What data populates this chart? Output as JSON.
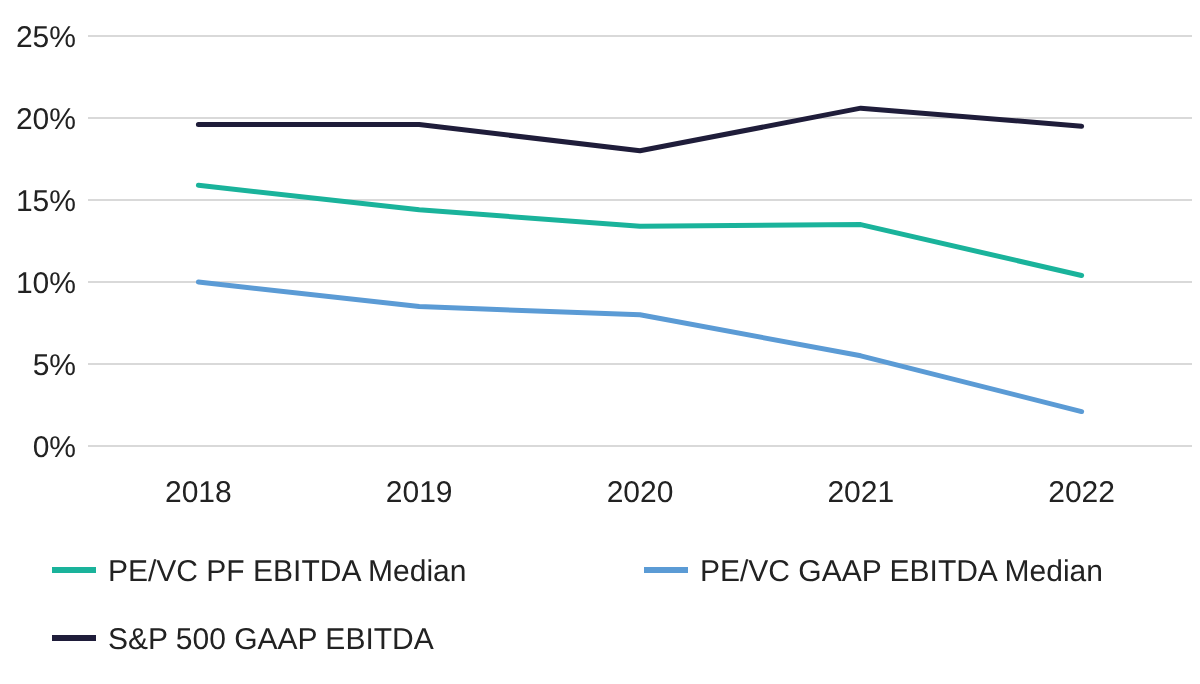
{
  "chart_data": {
    "type": "line",
    "categories": [
      "2018",
      "2019",
      "2020",
      "2021",
      "2022"
    ],
    "ylim": [
      0,
      25
    ],
    "yticks": [
      {
        "value": 0,
        "label": "0%"
      },
      {
        "value": 5,
        "label": "5%"
      },
      {
        "value": 10,
        "label": "10%"
      },
      {
        "value": 15,
        "label": "15%"
      },
      {
        "value": 20,
        "label": "20%"
      },
      {
        "value": 25,
        "label": "25%"
      }
    ],
    "grid": "y",
    "legend": "bottom",
    "marker": "none",
    "line_style": "solid",
    "series": [
      {
        "name": "PE/VC PF EBITDA Median",
        "color": "#1ab39b",
        "values": [
          15.9,
          14.4,
          13.4,
          13.5,
          10.4
        ]
      },
      {
        "name": "PE/VC GAAP EBITDA Median",
        "color": "#5b9bd5",
        "values": [
          10.0,
          8.5,
          8.0,
          5.5,
          2.1
        ]
      },
      {
        "name": "S&P 500 GAAP EBITDA",
        "color": "#1f1d3a",
        "values": [
          19.6,
          19.6,
          18.0,
          20.6,
          19.5
        ]
      }
    ]
  }
}
